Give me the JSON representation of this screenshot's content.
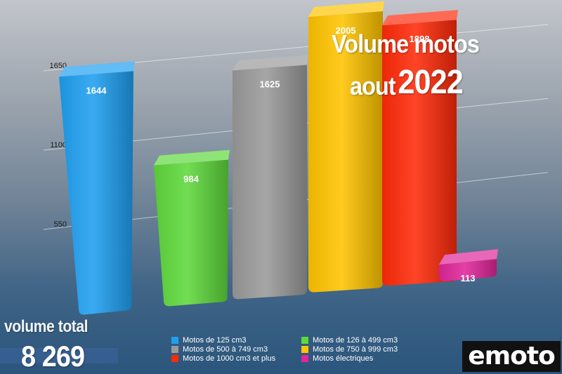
{
  "title": {
    "line1": "Volume motos",
    "line2_month": "aout",
    "line2_year": "2022"
  },
  "total": {
    "label": "volume total",
    "value": "8 269"
  },
  "logo": {
    "text": "emoto"
  },
  "chart_data": {
    "type": "bar",
    "title": "Volume motos aout 2022",
    "xlabel": "",
    "ylabel": "",
    "ylim": [
      0,
      1650
    ],
    "y_ticks": [
      550,
      1100,
      1650
    ],
    "grid": true,
    "legend_position": "bottom",
    "categories": [
      "Motos de 125 cm3",
      "Motos de 126 à 499 cm3",
      "Motos de 500 à 749 cm3",
      "Motos de 750 à 999 cm3",
      "Motos de 1000 cm3 et plus",
      "Motos électriques"
    ],
    "values": [
      1644,
      984,
      1625,
      2005,
      1898,
      113
    ],
    "colors": [
      "#1f9ff0",
      "#5fd83c",
      "#9a9a9a",
      "#ffc400",
      "#ff2a0a",
      "#e0269a"
    ],
    "data_labels": [
      "1644",
      "984",
      "1625",
      "2005",
      "1898",
      "113"
    ]
  }
}
